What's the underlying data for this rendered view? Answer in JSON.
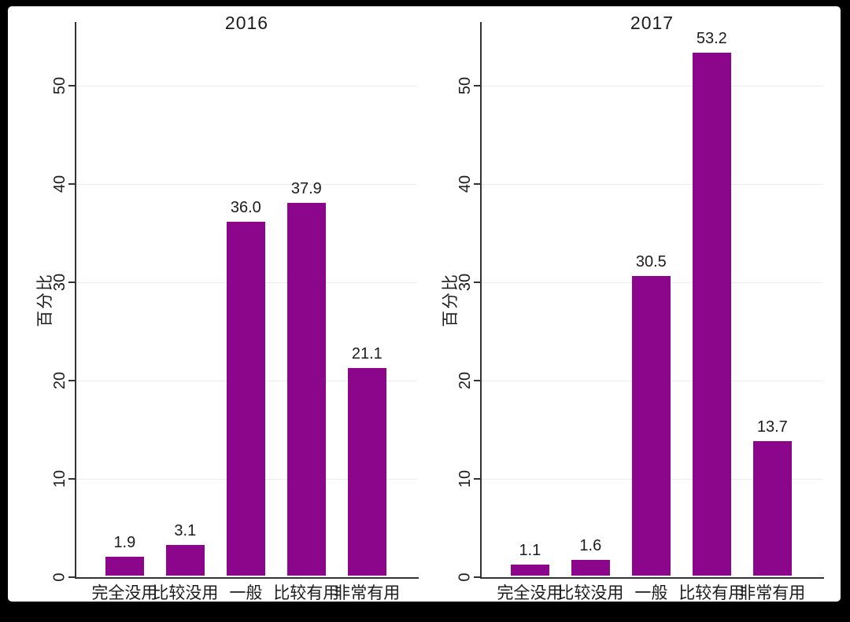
{
  "style": {
    "bar_color": "#8C068C",
    "grid_color": "#ececec",
    "axis_color": "#333333",
    "text_color": "#1c1c1c",
    "figure_background": "#ffffff",
    "frame_color": "#000000"
  },
  "chart_data": [
    {
      "type": "bar",
      "title": "2016",
      "ylabel": "百分比",
      "xlabel": "",
      "categories": [
        "完全没用",
        "比较没用",
        "一般",
        "比较有用",
        "非常有用"
      ],
      "values": [
        1.9,
        3.1,
        36.0,
        37.9,
        21.1
      ],
      "bar_labels": [
        "1.9",
        "3.1",
        "36.0",
        "37.9",
        "21.1"
      ],
      "yticks": [
        0,
        10,
        20,
        30,
        40,
        50
      ],
      "ylim": [
        0,
        56.5
      ],
      "grid": true,
      "legend": "none",
      "bar_color": "#8C068C"
    },
    {
      "type": "bar",
      "title": "2017",
      "ylabel": "百分比",
      "xlabel": "",
      "categories": [
        "完全没用",
        "比较没用",
        "一般",
        "比较有用",
        "非常有用"
      ],
      "values": [
        1.1,
        1.6,
        30.5,
        53.2,
        13.7
      ],
      "bar_labels": [
        "1.1",
        "1.6",
        "30.5",
        "53.2",
        "13.7"
      ],
      "yticks": [
        0,
        10,
        20,
        30,
        40,
        50
      ],
      "ylim": [
        0,
        56.5
      ],
      "grid": true,
      "legend": "none",
      "bar_color": "#8C068C"
    }
  ]
}
